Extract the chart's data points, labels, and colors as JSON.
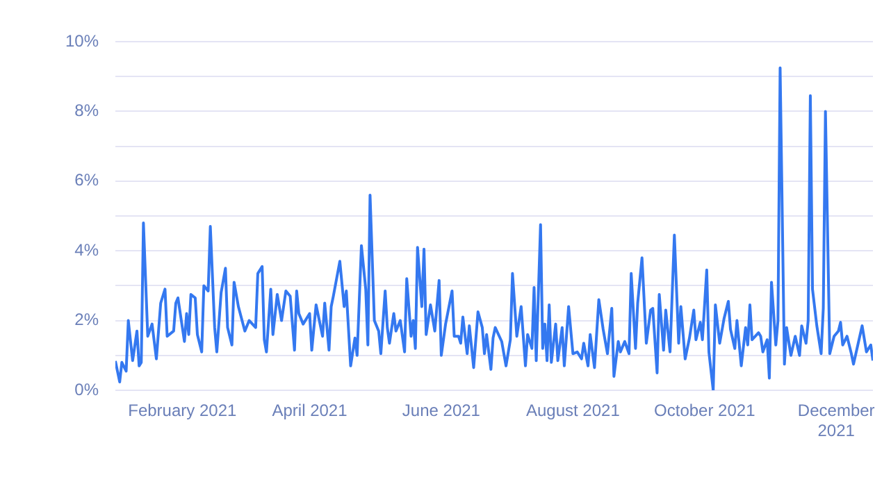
{
  "chart_data": {
    "type": "line",
    "x": [
      "2021-01-01",
      "2021-01-03",
      "2021-01-04",
      "2021-01-06",
      "2021-01-07",
      "2021-01-09",
      "2021-01-11",
      "2021-01-12",
      "2021-01-13",
      "2021-01-14",
      "2021-01-16",
      "2021-01-18",
      "2021-01-20",
      "2021-01-22",
      "2021-01-24",
      "2021-01-25",
      "2021-01-28",
      "2021-01-29",
      "2021-01-30",
      "2021-02-02",
      "2021-02-03",
      "2021-02-04",
      "2021-02-05",
      "2021-02-07",
      "2021-02-08",
      "2021-02-10",
      "2021-02-11",
      "2021-02-13",
      "2021-02-14",
      "2021-02-16",
      "2021-02-17",
      "2021-02-19",
      "2021-02-21",
      "2021-02-22",
      "2021-02-24",
      "2021-02-25",
      "2021-02-27",
      "2021-03-02",
      "2021-03-04",
      "2021-03-07",
      "2021-03-08",
      "2021-03-10",
      "2021-03-11",
      "2021-03-12",
      "2021-03-14",
      "2021-03-15",
      "2021-03-17",
      "2021-03-19",
      "2021-03-21",
      "2021-03-23",
      "2021-03-25",
      "2021-03-26",
      "2021-03-27",
      "2021-03-29",
      "2021-04-01",
      "2021-04-02",
      "2021-04-04",
      "2021-04-07",
      "2021-04-08",
      "2021-04-10",
      "2021-04-11",
      "2021-04-12",
      "2021-04-15",
      "2021-04-17",
      "2021-04-18",
      "2021-04-20",
      "2021-04-22",
      "2021-04-23",
      "2021-04-25",
      "2021-04-27",
      "2021-04-28",
      "2021-04-29",
      "2021-05-01",
      "2021-05-03",
      "2021-05-04",
      "2021-05-06",
      "2021-05-07",
      "2021-05-08",
      "2021-05-10",
      "2021-05-11",
      "2021-05-13",
      "2021-05-15",
      "2021-05-16",
      "2021-05-18",
      "2021-05-19",
      "2021-05-20",
      "2021-05-21",
      "2021-05-23",
      "2021-05-24",
      "2021-05-25",
      "2021-05-27",
      "2021-05-29",
      "2021-05-31",
      "2021-06-01",
      "2021-06-03",
      "2021-06-06",
      "2021-06-07",
      "2021-06-09",
      "2021-06-10",
      "2021-06-11",
      "2021-06-13",
      "2021-06-14",
      "2021-06-16",
      "2021-06-18",
      "2021-06-20",
      "2021-06-21",
      "2021-06-22",
      "2021-06-24",
      "2021-06-25",
      "2021-06-26",
      "2021-06-29",
      "2021-07-01",
      "2021-07-03",
      "2021-07-04",
      "2021-07-06",
      "2021-07-08",
      "2021-07-10",
      "2021-07-11",
      "2021-07-13",
      "2021-07-14",
      "2021-07-15",
      "2021-07-17",
      "2021-07-18",
      "2021-07-19",
      "2021-07-20",
      "2021-07-21",
      "2021-07-22",
      "2021-07-24",
      "2021-07-25",
      "2021-07-27",
      "2021-07-28",
      "2021-07-30",
      "2021-08-01",
      "2021-08-03",
      "2021-08-05",
      "2021-08-06",
      "2021-08-08",
      "2021-08-09",
      "2021-08-11",
      "2021-08-13",
      "2021-08-15",
      "2021-08-17",
      "2021-08-19",
      "2021-08-20",
      "2021-08-22",
      "2021-08-23",
      "2021-08-25",
      "2021-08-27",
      "2021-08-28",
      "2021-08-30",
      "2021-08-31",
      "2021-09-02",
      "2021-09-04",
      "2021-09-06",
      "2021-09-07",
      "2021-09-09",
      "2021-09-10",
      "2021-09-12",
      "2021-09-13",
      "2021-09-15",
      "2021-09-17",
      "2021-09-19",
      "2021-09-20",
      "2021-09-22",
      "2021-09-24",
      "2021-09-26",
      "2021-09-27",
      "2021-09-29",
      "2021-09-30",
      "2021-10-02",
      "2021-10-03",
      "2021-10-05",
      "2021-10-06",
      "2021-10-08",
      "2021-10-10",
      "2021-10-12",
      "2021-10-13",
      "2021-10-15",
      "2021-10-16",
      "2021-10-18",
      "2021-10-20",
      "2021-10-21",
      "2021-10-22",
      "2021-10-23",
      "2021-10-26",
      "2021-10-27",
      "2021-10-28",
      "2021-10-30",
      "2021-10-31",
      "2021-11-01",
      "2021-11-03",
      "2021-11-04",
      "2021-11-05",
      "2021-11-07",
      "2021-11-08",
      "2021-11-10",
      "2021-11-12",
      "2021-11-14",
      "2021-11-15",
      "2021-11-17",
      "2021-11-18",
      "2021-11-19",
      "2021-11-20",
      "2021-11-22",
      "2021-11-24",
      "2021-11-25",
      "2021-11-26",
      "2021-11-28",
      "2021-11-30",
      "2021-12-02",
      "2021-12-03",
      "2021-12-04",
      "2021-12-06",
      "2021-12-08",
      "2021-12-09",
      "2021-12-11",
      "2021-12-13",
      "2021-12-15",
      "2021-12-17",
      "2021-12-18"
    ],
    "series": [
      {
        "color": "#3478f0",
        "values": [
          0.84,
          0.24,
          0.8,
          0.55,
          2.0,
          0.85,
          1.7,
          0.7,
          0.8,
          4.8,
          1.55,
          1.9,
          0.9,
          2.5,
          2.9,
          1.55,
          1.7,
          2.5,
          2.65,
          1.4,
          2.2,
          1.6,
          2.75,
          2.65,
          1.6,
          1.1,
          3.0,
          2.85,
          4.7,
          1.8,
          1.1,
          2.8,
          3.5,
          1.8,
          1.3,
          3.1,
          2.4,
          1.7,
          2.0,
          1.8,
          3.35,
          3.55,
          1.45,
          1.1,
          2.9,
          1.6,
          2.75,
          2.0,
          2.85,
          2.7,
          1.15,
          2.85,
          2.2,
          1.9,
          2.2,
          1.15,
          2.45,
          1.55,
          2.5,
          1.15,
          2.4,
          2.7,
          3.7,
          2.4,
          2.85,
          0.7,
          1.5,
          1.0,
          4.15,
          2.9,
          1.3,
          5.6,
          2.0,
          1.7,
          1.05,
          2.85,
          1.8,
          1.35,
          2.2,
          1.7,
          2.0,
          1.1,
          3.2,
          1.55,
          2.0,
          1.2,
          4.1,
          2.4,
          4.05,
          1.6,
          2.45,
          1.7,
          3.15,
          1.0,
          1.9,
          2.85,
          1.55,
          1.55,
          1.35,
          2.1,
          1.05,
          1.85,
          0.65,
          2.25,
          1.8,
          1.05,
          1.6,
          0.6,
          1.5,
          1.8,
          1.4,
          0.7,
          1.45,
          3.35,
          1.55,
          2.4,
          0.7,
          1.6,
          1.2,
          2.95,
          0.85,
          4.75,
          1.2,
          1.9,
          0.85,
          2.45,
          0.8,
          1.9,
          0.85,
          1.8,
          0.7,
          2.4,
          1.05,
          1.1,
          0.9,
          1.35,
          0.7,
          1.6,
          0.65,
          2.6,
          1.75,
          1.05,
          2.35,
          0.4,
          1.4,
          1.1,
          1.4,
          1.05,
          3.35,
          1.2,
          2.5,
          3.8,
          1.35,
          2.3,
          2.35,
          0.5,
          2.75,
          1.15,
          2.3,
          1.1,
          4.45,
          1.35,
          2.4,
          0.9,
          1.5,
          2.3,
          1.45,
          1.95,
          1.45,
          3.45,
          1.1,
          0.0,
          2.45,
          1.35,
          2.05,
          2.55,
          1.75,
          1.2,
          2.0,
          0.7,
          1.8,
          1.3,
          2.45,
          1.45,
          1.65,
          1.55,
          1.1,
          1.45,
          0.35,
          3.1,
          1.3,
          2.0,
          9.25,
          0.75,
          1.8,
          1.0,
          1.55,
          1.0,
          1.85,
          1.35,
          2.0,
          8.45,
          2.9,
          1.85,
          1.05,
          2.35,
          8.0,
          1.05,
          1.55,
          1.7,
          1.95,
          1.3,
          1.55,
          1.05,
          0.75,
          1.3,
          1.85,
          1.1,
          1.3,
          0.85
        ]
      }
    ],
    "xlim": [
      "2021-01-01",
      "2021-12-18"
    ],
    "xticks": [
      {
        "value": "2021-02-01",
        "label": "February 2021"
      },
      {
        "value": "2021-04-01",
        "label": "April 2021"
      },
      {
        "value": "2021-06-01",
        "label": "June 2021"
      },
      {
        "value": "2021-08-01",
        "label": "August 2021"
      },
      {
        "value": "2021-10-01",
        "label": "October 2021"
      },
      {
        "value": "2021-12-01",
        "label": "December 2021"
      }
    ],
    "ylim": [
      0,
      10
    ],
    "yticks": [
      {
        "value": 0,
        "label": "0%"
      },
      {
        "value": 1,
        "label": null
      },
      {
        "value": 2,
        "label": "2%"
      },
      {
        "value": 3,
        "label": null
      },
      {
        "value": 4,
        "label": "4%"
      },
      {
        "value": 5,
        "label": null
      },
      {
        "value": 6,
        "label": "6%"
      },
      {
        "value": 7,
        "label": null
      },
      {
        "value": 8,
        "label": "8%"
      },
      {
        "value": 9,
        "label": null
      },
      {
        "value": 10,
        "label": "10%"
      }
    ],
    "grid": "y",
    "legend": false,
    "marker": "none",
    "line_style": "solid"
  }
}
